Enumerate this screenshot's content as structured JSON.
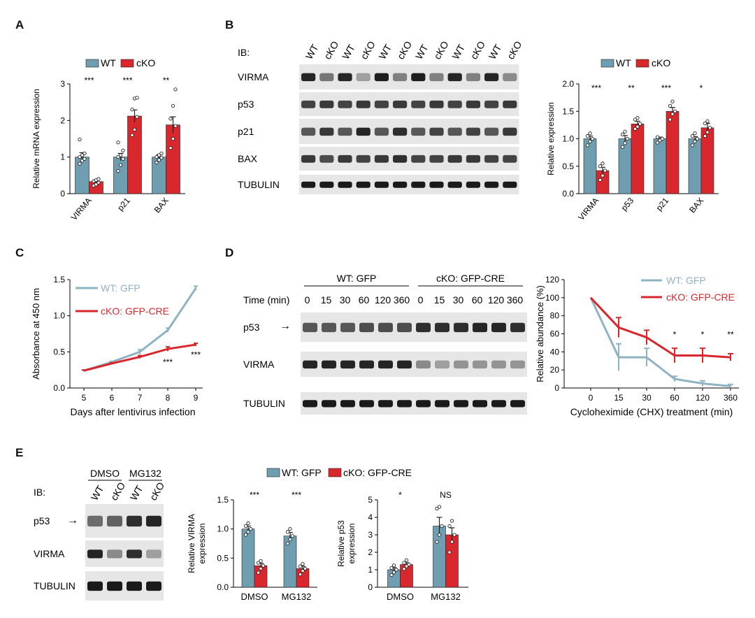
{
  "colors": {
    "wt": "#6f9eb1",
    "cko": "#d9272e",
    "wt_line": "#8fb3c3",
    "cko_line": "#d9272e",
    "blot_bg": "#e6e6e6",
    "band": "#1a1a1a"
  },
  "panels": {
    "A": "A",
    "B": "B",
    "C": "C",
    "D": "D",
    "E": "E"
  },
  "blot_B": {
    "ib": "IB:",
    "lanes": [
      "WT",
      "cKO",
      "WT",
      "cKO",
      "WT",
      "cKO",
      "WT",
      "cKO",
      "WT",
      "cKO",
      "WT",
      "cKO"
    ],
    "rows": [
      "VIRMA",
      "p53",
      "p21",
      "BAX",
      "TUBULIN"
    ]
  },
  "blot_D": {
    "group1": "WT: GFP",
    "group2": "cKO: GFP-CRE",
    "time_label": "Time (min)",
    "times": [
      "0",
      "15",
      "30",
      "60",
      "120",
      "360",
      "0",
      "15",
      "30",
      "60",
      "120",
      "360"
    ],
    "rows": [
      "p53",
      "VIRMA",
      "TUBULIN"
    ],
    "arrow": "→"
  },
  "blot_E": {
    "ib": "IB:",
    "group1": "DMSO",
    "group2": "MG132",
    "lanes": [
      "WT",
      "cKO",
      "WT",
      "cKO"
    ],
    "rows": [
      "p53",
      "VIRMA",
      "TUBULIN"
    ],
    "arrow": "→"
  },
  "chart_data": [
    {
      "id": "A",
      "type": "bar",
      "categories": [
        "VIRMA",
        "p21",
        "BAX"
      ],
      "series": [
        {
          "name": "WT",
          "values": [
            1.0,
            1.0,
            1.0
          ],
          "err": [
            0.12,
            0.1,
            0.06
          ],
          "points": [
            [
              0.82,
              0.9,
              0.95,
              1.0,
              1.05,
              1.1,
              1.48
            ],
            [
              0.62,
              0.78,
              0.95,
              1.0,
              1.05,
              1.18,
              1.4
            ],
            [
              0.85,
              0.92,
              0.98,
              1.0,
              1.05,
              1.1
            ]
          ]
        },
        {
          "name": "cKO",
          "values": [
            0.33,
            2.12,
            1.88
          ],
          "err": [
            0.04,
            0.17,
            0.22
          ],
          "points": [
            [
              0.22,
              0.25,
              0.3,
              0.34,
              0.37,
              0.4
            ],
            [
              1.6,
              1.75,
              2.1,
              2.3,
              2.6,
              2.62
            ],
            [
              1.25,
              1.5,
              1.85,
              2.05,
              2.4,
              2.85
            ]
          ]
        }
      ],
      "sig": [
        "***",
        "***",
        "**"
      ],
      "ylabel": "Relative mRNA expression",
      "ylim": [
        0,
        3
      ],
      "yticks": [
        "0",
        "1",
        "2",
        "3"
      ],
      "legend": [
        "WT",
        "cKO"
      ]
    },
    {
      "id": "B",
      "type": "bar",
      "categories": [
        "VIRMA",
        "p53",
        "p21",
        "BAX"
      ],
      "series": [
        {
          "name": "WT",
          "values": [
            1.0,
            1.0,
            1.0,
            1.0
          ],
          "err": [
            0.05,
            0.06,
            0.03,
            0.04
          ],
          "points": [
            [
              0.88,
              0.95,
              1.0,
              1.05,
              1.1
            ],
            [
              0.85,
              0.92,
              1.0,
              1.08,
              1.13
            ],
            [
              0.93,
              0.97,
              1.0,
              1.03
            ],
            [
              0.88,
              0.95,
              1.0,
              1.05,
              1.1
            ]
          ]
        },
        {
          "name": "cKO",
          "values": [
            0.42,
            1.27,
            1.5,
            1.2
          ],
          "err": [
            0.06,
            0.05,
            0.07,
            0.08
          ],
          "points": [
            [
              0.25,
              0.33,
              0.42,
              0.5,
              0.55
            ],
            [
              1.18,
              1.22,
              1.27,
              1.35,
              1.38
            ],
            [
              1.35,
              1.45,
              1.5,
              1.6,
              1.68
            ],
            [
              1.05,
              1.12,
              1.2,
              1.28,
              1.32
            ]
          ]
        }
      ],
      "sig": [
        "***",
        "**",
        "***",
        "*"
      ],
      "ylabel": "Relative expression",
      "ylim": [
        0,
        2
      ],
      "yticks": [
        "0.0",
        "0.5",
        "1.0",
        "1.5",
        "2.0"
      ],
      "legend": [
        "WT",
        "cKO"
      ]
    },
    {
      "id": "C",
      "type": "line",
      "x": [
        5,
        6,
        7,
        8,
        9
      ],
      "series": [
        {
          "name": "WT: GFP",
          "values": [
            0.24,
            0.36,
            0.5,
            0.8,
            1.38
          ],
          "err": [
            0.01,
            0.01,
            0.03,
            0.03,
            0.03
          ]
        },
        {
          "name": "cKO: GFP-CRE",
          "values": [
            0.24,
            0.34,
            0.43,
            0.54,
            0.6
          ],
          "err": [
            0.01,
            0.01,
            0.02,
            0.03,
            0.02
          ]
        }
      ],
      "sig": {
        "8": "***",
        "9": "***"
      },
      "xlabel": "Days after lentivirus infection",
      "ylabel": "Absorbance at 450 nm",
      "xticks": [
        "5",
        "6",
        "7",
        "8",
        "9"
      ],
      "ylim": [
        0,
        1.5
      ],
      "yticks": [
        "0.0",
        "0.5",
        "1.0",
        "1.5"
      ]
    },
    {
      "id": "D",
      "type": "line",
      "x": [
        "0",
        "15",
        "30",
        "60",
        "120",
        "360"
      ],
      "series": [
        {
          "name": "WT: GFP",
          "values": [
            100,
            34,
            34,
            10,
            5,
            2
          ],
          "err": [
            0,
            15,
            10,
            3,
            3,
            2
          ]
        },
        {
          "name": "cKO: GFP-CRE",
          "values": [
            100,
            67,
            56,
            36,
            36,
            34
          ],
          "err": [
            0,
            11,
            8,
            8,
            8,
            4
          ]
        }
      ],
      "sig": {
        "60": "*",
        "120": "*",
        "360": "**"
      },
      "xlabel": "Cycloheximide (CHX) treatment (min)",
      "ylabel": "Relative abundance (%)",
      "ylim": [
        0,
        120
      ],
      "yticks": [
        "0",
        "20",
        "40",
        "60",
        "80",
        "100",
        "120"
      ]
    },
    {
      "id": "E1",
      "type": "bar",
      "categories": [
        "DMSO",
        "MG132"
      ],
      "series": [
        {
          "name": "WT: GFP",
          "values": [
            1.0,
            0.88
          ],
          "err": [
            0.05,
            0.06
          ],
          "points": [
            [
              0.9,
              0.95,
              1.0,
              1.05,
              1.1
            ],
            [
              0.75,
              0.82,
              0.88,
              0.95,
              1.0
            ]
          ]
        },
        {
          "name": "cKO: GFP-CRE",
          "values": [
            0.37,
            0.32
          ],
          "err": [
            0.04,
            0.04
          ],
          "points": [
            [
              0.25,
              0.32,
              0.37,
              0.42,
              0.45
            ],
            [
              0.22,
              0.28,
              0.32,
              0.36,
              0.4
            ]
          ]
        }
      ],
      "sig": [
        "***",
        "***"
      ],
      "ylabel": [
        "Relative VIRMA",
        "expression"
      ],
      "ylim": [
        0,
        1.5
      ],
      "yticks": [
        "0.0",
        "0.5",
        "1.0",
        "1.5"
      ]
    },
    {
      "id": "E2",
      "type": "bar",
      "categories": [
        "DMSO",
        "MG132"
      ],
      "series": [
        {
          "name": "WT: GFP",
          "values": [
            1.0,
            3.5
          ],
          "err": [
            0.12,
            0.5
          ],
          "points": [
            [
              0.7,
              0.85,
              1.0,
              1.1,
              1.25
            ],
            [
              2.6,
              3.0,
              3.5,
              4.5,
              4.6
            ]
          ]
        },
        {
          "name": "cKO: GFP-CRE",
          "values": [
            1.3,
            3.0
          ],
          "err": [
            0.1,
            0.4
          ],
          "points": [
            [
              1.05,
              1.2,
              1.3,
              1.4,
              1.55
            ],
            [
              2.0,
              2.6,
              3.0,
              3.5,
              3.8
            ]
          ]
        }
      ],
      "sig": [
        "*",
        "NS"
      ],
      "ylabel": [
        "Relative p53",
        "expression"
      ],
      "ylim": [
        0,
        5
      ],
      "yticks": [
        "0",
        "1",
        "2",
        "3",
        "4",
        "5"
      ]
    }
  ],
  "legend_E": [
    "WT: GFP",
    "cKO: GFP-CRE"
  ]
}
